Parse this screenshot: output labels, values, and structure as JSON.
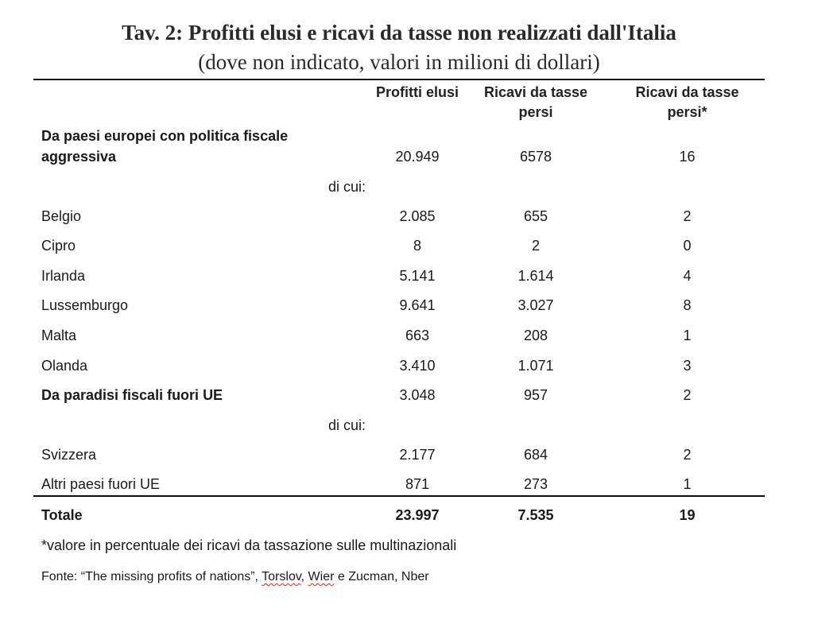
{
  "title": "Tav. 2: Profitti elusi e ricavi da tasse non realizzati dall'Italia",
  "subtitle": "(dove non indicato, valori in milioni di dollari)",
  "headers": {
    "col1": "Profitti elusi",
    "col2": "Ricavi da tasse persi",
    "col3": "Ricavi da tasse persi*"
  },
  "rows": {
    "europe": {
      "label": "Da paesi europei con politica fiscale aggressiva",
      "profitti": "20.949",
      "ricavi": "6578",
      "perc": "16"
    },
    "dicui1": "di cui:",
    "belgio": {
      "label": "Belgio",
      "profitti": "2.085",
      "ricavi": "655",
      "perc": "2"
    },
    "cipro": {
      "label": "Cipro",
      "profitti": "8",
      "ricavi": "2",
      "perc": "0"
    },
    "irlanda": {
      "label": "Irlanda",
      "profitti": "5.141",
      "ricavi": "1.614",
      "perc": "4"
    },
    "lussemburgo": {
      "label": "Lussemburgo",
      "profitti": "9.641",
      "ricavi": "3.027",
      "perc": "8"
    },
    "malta": {
      "label": "Malta",
      "profitti": "663",
      "ricavi": "208",
      "perc": "1"
    },
    "olanda": {
      "label": "Olanda",
      "profitti": "3.410",
      "ricavi": "1.071",
      "perc": "3"
    },
    "paradisi": {
      "label": "Da paradisi fiscali fuori UE",
      "profitti": "3.048",
      "ricavi": "957",
      "perc": "2"
    },
    "dicui2": "di cui:",
    "svizzera": {
      "label": "Svizzera",
      "profitti": "2.177",
      "ricavi": "684",
      "perc": "2"
    },
    "altri": {
      "label": "Altri paesi fuori UE",
      "profitti": "871",
      "ricavi": "273",
      "perc": "1"
    },
    "totale": {
      "label": "Totale",
      "profitti": "23.997",
      "ricavi": "7.535",
      "perc": "19"
    }
  },
  "note": "*valore in percentuale dei ricavi da tassazione sulle multinazionali",
  "source": {
    "prefix": "Fonte: “The missing profits of nations”, ",
    "author1": "Torslov",
    "sep1": ", ",
    "author2": "Wier",
    "suffix": " e Zucman, Nber"
  }
}
